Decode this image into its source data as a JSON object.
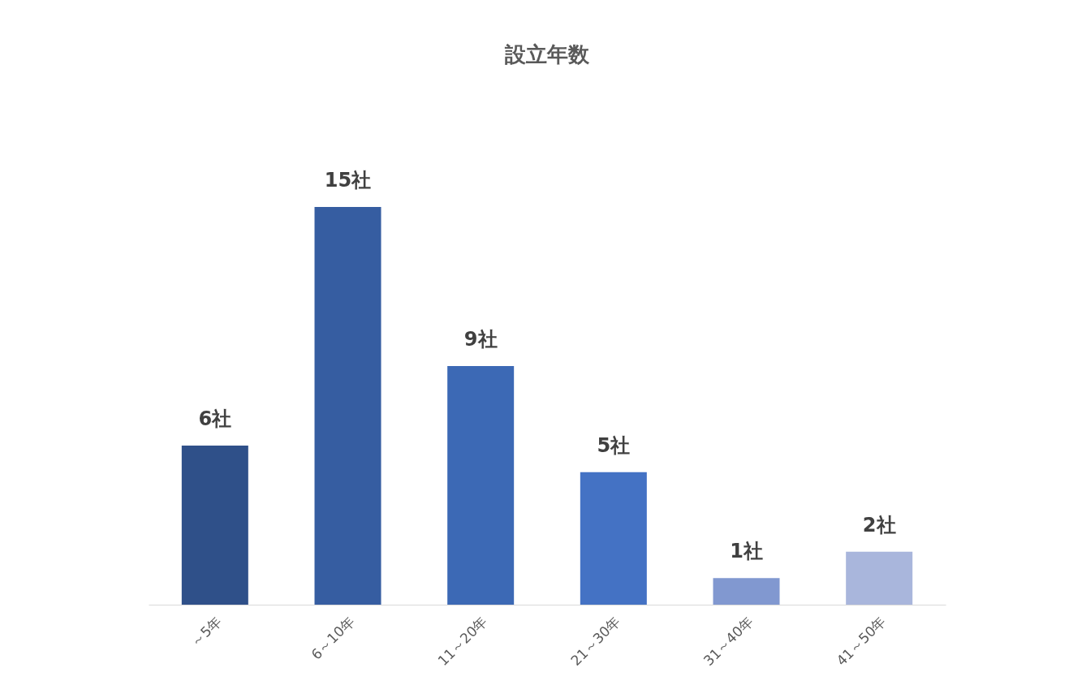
{
  "chart_data": {
    "type": "bar",
    "title": "設立年数",
    "categories": [
      "～5年",
      "6～10年",
      "11～20年",
      "21～30年",
      "31～40年",
      "41～50年"
    ],
    "values": [
      6,
      15,
      9,
      5,
      1,
      2
    ],
    "value_labels": [
      "6社",
      "15社",
      "9社",
      "5社",
      "1社",
      "2社"
    ],
    "colors": [
      "#2f5089",
      "#365da1",
      "#3c69b5",
      "#4472c4",
      "#8198d0",
      "#a9b6dc"
    ],
    "grid": false
  }
}
